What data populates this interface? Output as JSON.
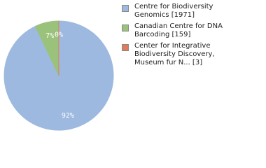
{
  "chart_data": {
    "type": "pie",
    "categories": [
      "Centre for Biodiversity Genomics [1971]",
      "Canadian Centre for DNA Barcoding [159]",
      "Center for Integrative Biodiversity Discovery, Museum fur N... [3]"
    ],
    "values": [
      92,
      7,
      0
    ],
    "value_labels": [
      "92%",
      "7%",
      "0%"
    ],
    "colors": [
      "#9db9e0",
      "#9bc27b",
      "#e07b5b"
    ]
  }
}
